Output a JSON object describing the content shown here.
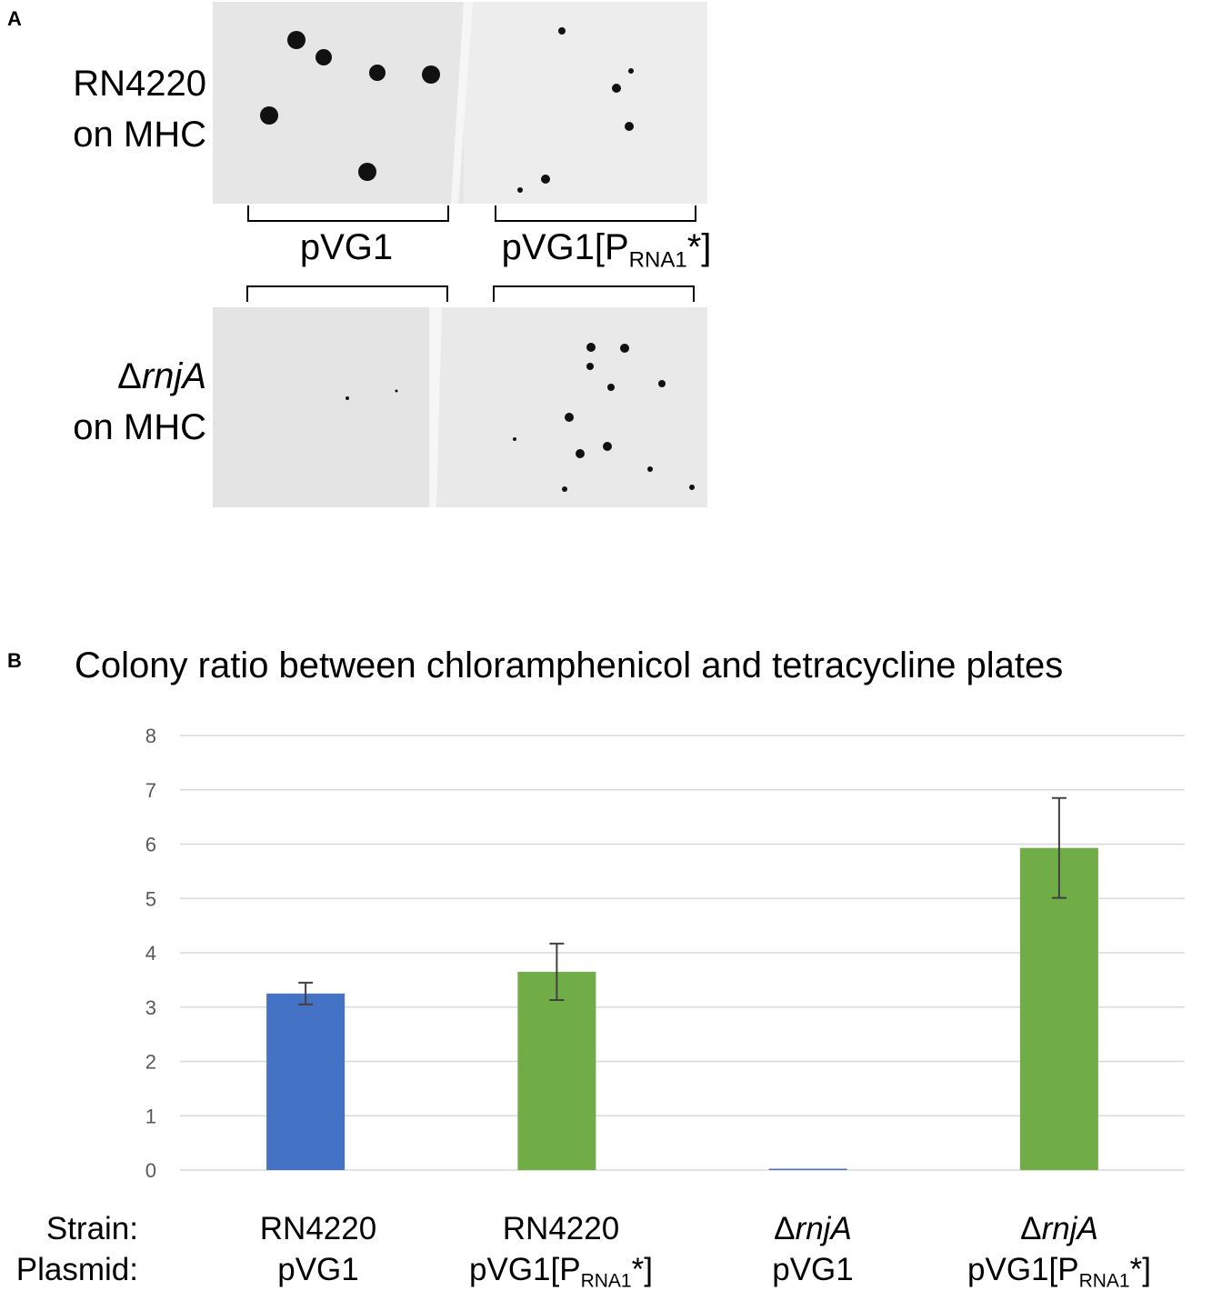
{
  "panel_a": {
    "letter": "A",
    "rows": [
      {
        "strain_prefix": "",
        "strain_italic": "RN4220",
        "strain_italic_style": false,
        "medium": "on MHC"
      },
      {
        "strain_prefix": "Δ",
        "strain_italic": "rnjA",
        "strain_italic_style": true,
        "medium": "on MHC"
      }
    ],
    "plasmids": [
      {
        "main": "pVG1",
        "sub": "",
        "suffix": ""
      },
      {
        "main": "pVG1[P",
        "sub": "RNA1",
        "suffix": "*]"
      }
    ]
  },
  "panel_b": {
    "letter": "B",
    "axis_keys": {
      "strain": "Strain:",
      "plasmid": "Plasmid:"
    },
    "groups": [
      {
        "strain_prefix": "",
        "strain": "RN4220",
        "italic": false,
        "plasmid_main": "pVG1",
        "plasmid_sub": "",
        "plasmid_suffix": ""
      },
      {
        "strain_prefix": "",
        "strain": "RN4220",
        "italic": false,
        "plasmid_main": "pVG1[P",
        "plasmid_sub": "RNA1",
        "plasmid_suffix": "*]"
      },
      {
        "strain_prefix": "Δ",
        "strain": "rnjA",
        "italic": true,
        "plasmid_main": "pVG1",
        "plasmid_sub": "",
        "plasmid_suffix": ""
      },
      {
        "strain_prefix": "Δ",
        "strain": "rnjA",
        "italic": true,
        "plasmid_main": "pVG1[P",
        "plasmid_sub": "RNA1",
        "plasmid_suffix": "*]"
      }
    ]
  },
  "colors": {
    "blue": "#4472c4",
    "green": "#70ad47",
    "grid": "#d9d9d9",
    "error": "#404040",
    "tick": "#595959"
  },
  "chart_data": {
    "type": "bar",
    "title": "Colony ratio between chloramphenicol and tetracycline plates",
    "xlabel": "",
    "ylabel": "",
    "ylim": [
      0,
      8
    ],
    "yticks": [
      0,
      1,
      2,
      3,
      4,
      5,
      6,
      7,
      8
    ],
    "grid": true,
    "categories": [
      "RN4220 pVG1",
      "RN4220 pVG1[PRNA1*]",
      "ΔrnjA pVG1",
      "ΔrnjA pVG1[PRNA1*]"
    ],
    "values": [
      3.25,
      3.65,
      0.01,
      5.93
    ],
    "error": [
      0.2,
      0.52,
      0.0,
      0.92
    ],
    "bar_colors": [
      "blue",
      "green",
      "blue",
      "green"
    ]
  }
}
